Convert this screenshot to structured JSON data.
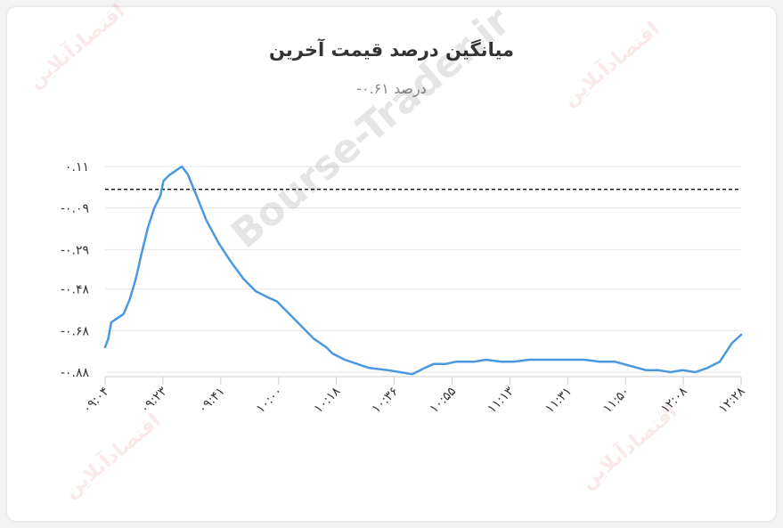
{
  "title": "میانگین درصد قیمت آخرین",
  "subtitle": "درصد ۰.۶۱-",
  "watermark_text": "Bourse-Trader.ir",
  "logo_watermark": "اقتصادآنلاین",
  "colors": {
    "line": "#4a98e0",
    "reference_line": "#111111",
    "grid": "#e6e6e6",
    "title": "#333333",
    "subtitle": "#888888",
    "axis_text": "#333333"
  },
  "chart_data": {
    "type": "line",
    "title": "میانگین درصد قیمت آخرین",
    "subtitle": "درصد ۰.۶۱-",
    "xlabel": "",
    "ylabel": "",
    "x_tick_labels": [
      "۰۹:۰۴",
      "۰۹:۲۳",
      "۰۹:۴۱",
      "۱۰:۰۰",
      "۱۰:۱۸",
      "۱۰:۳۶",
      "۱۰:۵۵",
      "۱۱:۱۳",
      "۱۱:۳۱",
      "۱۱:۵۰",
      "۱۲:۰۸",
      "۱۲:۲۸"
    ],
    "y_tick_labels": [
      "۰.۱۱",
      "-۰.۰۹",
      "-۰.۲۹",
      "-۰.۴۸",
      "-۰.۶۸",
      "-۰.۸۸"
    ],
    "y_ticks": [
      0.11,
      -0.09,
      -0.29,
      -0.48,
      -0.68,
      -0.88
    ],
    "ylim": [
      -0.88,
      0.11
    ],
    "grid": true,
    "legend": "none",
    "reference_line": {
      "y": 0.0,
      "style": "dashed"
    },
    "series": [
      {
        "x": [
          "09:04",
          "09:05",
          "09:06",
          "09:07",
          "09:10",
          "09:12",
          "09:14",
          "09:16",
          "09:18",
          "09:20",
          "09:22",
          "09:23",
          "09:25",
          "09:27",
          "09:29",
          "09:31",
          "09:34",
          "09:37",
          "09:41",
          "09:45",
          "09:49",
          "09:53",
          "09:57",
          "10:00",
          "10:04",
          "10:08",
          "10:12",
          "10:16",
          "10:18",
          "10:22",
          "10:26",
          "10:30",
          "10:36",
          "10:40",
          "10:44",
          "10:48",
          "10:51",
          "10:55",
          "10:58",
          "11:01",
          "11:04",
          "11:08",
          "11:13",
          "11:17",
          "11:22",
          "11:26",
          "11:31",
          "11:35",
          "11:40",
          "11:45",
          "11:50",
          "11:55",
          "12:00",
          "12:04",
          "12:08",
          "12:12",
          "12:16",
          "12:20",
          "12:24",
          "12:28",
          "12:31"
        ],
        "values": [
          -0.76,
          -0.72,
          -0.64,
          -0.63,
          -0.6,
          -0.53,
          -0.43,
          -0.3,
          -0.18,
          -0.09,
          -0.03,
          0.04,
          0.07,
          0.09,
          0.11,
          0.07,
          -0.04,
          -0.15,
          -0.26,
          -0.35,
          -0.43,
          -0.49,
          -0.52,
          -0.54,
          -0.6,
          -0.66,
          -0.72,
          -0.76,
          -0.79,
          -0.82,
          -0.84,
          -0.86,
          -0.87,
          -0.88,
          -0.89,
          -0.86,
          -0.84,
          -0.84,
          -0.83,
          -0.83,
          -0.83,
          -0.82,
          -0.83,
          -0.83,
          -0.82,
          -0.82,
          -0.82,
          -0.82,
          -0.82,
          -0.83,
          -0.83,
          -0.85,
          -0.87,
          -0.87,
          -0.88,
          -0.87,
          -0.88,
          -0.86,
          -0.83,
          -0.74,
          -0.7
        ]
      }
    ]
  }
}
